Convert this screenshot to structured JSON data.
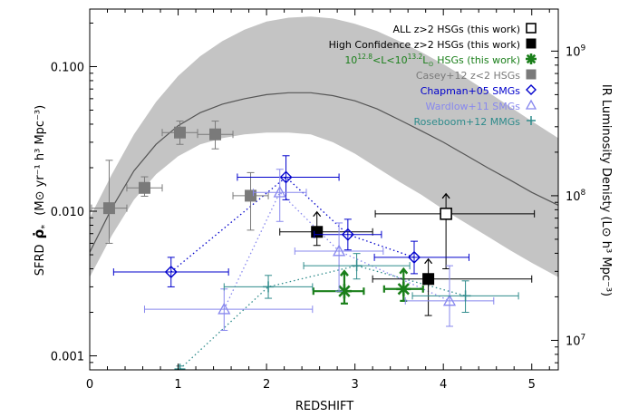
{
  "chart_data": {
    "type": "scatter",
    "title": "",
    "xlabel": "REDSHIFT",
    "ylabel_left": {
      "prefix": "SFRD",
      "symbol": "ρ̇",
      "symbol_sub": "*",
      "units": "(M⊙ yr⁻¹ h³ Mpc⁻³)"
    },
    "ylabel_right": "IR Luminosity Denisty (L⊙ h³ Mpc⁻³)",
    "xlim": [
      0,
      5.3
    ],
    "ylim": [
      0.0008,
      0.25
    ],
    "y_scale": "log",
    "right_axis_scale": "log",
    "x_ticks": [
      "0",
      "1",
      "2",
      "3",
      "4",
      "5"
    ],
    "y_ticks": [
      {
        "value": 0.001,
        "label": "0.001"
      },
      {
        "value": 0.01,
        "label": "0.010"
      },
      {
        "value": 0.1,
        "label": "0.100"
      }
    ],
    "right_ticks": [
      {
        "value": 0.00128,
        "label": "10",
        "exp": "7"
      },
      {
        "value": 0.0128,
        "label": "10",
        "exp": "8"
      },
      {
        "value": 0.128,
        "label": "10",
        "exp": "9"
      }
    ],
    "grid": false,
    "legend_position": "top-right",
    "band": {
      "z": [
        0,
        0.25,
        0.5,
        0.75,
        1.0,
        1.25,
        1.5,
        1.75,
        2.0,
        2.25,
        2.5,
        2.75,
        3.0,
        3.25,
        3.5,
        3.75,
        4.0,
        4.25,
        4.5,
        4.75,
        5.0,
        5.3
      ],
      "upper": [
        0.009,
        0.018,
        0.034,
        0.057,
        0.086,
        0.118,
        0.15,
        0.18,
        0.205,
        0.218,
        0.222,
        0.215,
        0.198,
        0.176,
        0.15,
        0.126,
        0.104,
        0.084,
        0.067,
        0.053,
        0.042,
        0.032
      ],
      "lower": [
        0.0035,
        0.0068,
        0.012,
        0.018,
        0.024,
        0.029,
        0.032,
        0.034,
        0.035,
        0.035,
        0.034,
        0.03,
        0.025,
        0.02,
        0.016,
        0.013,
        0.0103,
        0.0083,
        0.0067,
        0.0054,
        0.0044,
        0.0035
      ]
    },
    "model_line": {
      "z": [
        0,
        0.25,
        0.5,
        0.75,
        1.0,
        1.25,
        1.5,
        1.75,
        2.0,
        2.25,
        2.5,
        2.75,
        3.0,
        3.25,
        3.5,
        3.75,
        4.0,
        4.25,
        4.5,
        4.75,
        5.0,
        5.3
      ],
      "y": [
        0.0052,
        0.0105,
        0.019,
        0.029,
        0.039,
        0.048,
        0.055,
        0.06,
        0.064,
        0.066,
        0.066,
        0.063,
        0.058,
        0.051,
        0.043,
        0.036,
        0.03,
        0.0245,
        0.02,
        0.0165,
        0.0135,
        0.011
      ]
    },
    "series": [
      {
        "name": "ALL z>2 HSGs (this work)",
        "color": "#000000",
        "marker": "square-open",
        "connect": "none",
        "points": [
          {
            "x": 4.03,
            "y": 0.0096,
            "xerr": [
              0.8,
              1.0
            ],
            "yerr": [
              0.0056,
              0.0
            ],
            "lower_limit": true
          }
        ]
      },
      {
        "name": "High Confidence z>2 HSGs (this work)",
        "color": "#000000",
        "marker": "square-filled",
        "connect": "none",
        "points": [
          {
            "x": 2.57,
            "y": 0.0072,
            "xerr": [
              0.42,
              0.63
            ],
            "yerr": [
              0.0014,
              0.0
            ],
            "lower_limit": true
          },
          {
            "x": 3.83,
            "y": 0.0034,
            "xerr": [
              0.63,
              1.17
            ],
            "yerr": [
              0.0015,
              0.0
            ],
            "lower_limit": true
          }
        ]
      },
      {
        "name": "10^{12.8}<L<10^{13.2} L⊙ HSGs (this work)",
        "label_parts": {
          "base1": "10",
          "exp1": "12.8",
          "mid": "<L<10",
          "exp2": "13.2",
          "tail": "L",
          "sun_sub": "⊙",
          "end": " HSGs (this work)"
        },
        "color": "#1a7f1a",
        "marker": "asterisk",
        "connect": "none",
        "points": [
          {
            "x": 2.88,
            "y": 0.0028,
            "xerr": [
              0.35,
              0.22
            ],
            "yerr": [
              0.0005,
              0.0
            ],
            "lower_limit": true
          },
          {
            "x": 3.55,
            "y": 0.0029,
            "xerr": [
              0.22,
              0.22
            ],
            "yerr": [
              0.0005,
              0.0
            ],
            "lower_limit": true
          }
        ]
      },
      {
        "name": "Casey+12 z<2 HSGs",
        "color": "#7a7a7a",
        "marker": "square-filled",
        "connect": "none",
        "points": [
          {
            "x": 0.22,
            "y": 0.0105,
            "xerr": [
              0.2,
              0.2
            ],
            "yerr": [
              0.0045,
              0.012
            ]
          },
          {
            "x": 0.62,
            "y": 0.0145,
            "xerr": [
              0.2,
              0.2
            ],
            "yerr": [
              0.0018,
              0.0028
            ]
          },
          {
            "x": 1.02,
            "y": 0.035,
            "xerr": [
              0.2,
              0.2
            ],
            "yerr": [
              0.006,
              0.007
            ]
          },
          {
            "x": 1.42,
            "y": 0.034,
            "xerr": [
              0.2,
              0.2
            ],
            "yerr": [
              0.007,
              0.008
            ]
          },
          {
            "x": 1.82,
            "y": 0.0128,
            "xerr": [
              0.2,
              0.2
            ],
            "yerr": [
              0.0054,
              0.0057
            ]
          }
        ]
      },
      {
        "name": "Chapman+05 SMGs",
        "color": "#0000cc",
        "marker": "diamond-open",
        "connect": "dotted",
        "points": [
          {
            "x": 0.92,
            "y": 0.0038,
            "xerr": [
              0.65,
              0.65
            ],
            "yerr": [
              0.0008,
              0.001
            ]
          },
          {
            "x": 2.22,
            "y": 0.0172,
            "xerr": [
              0.55,
              0.6
            ],
            "yerr": [
              0.0052,
              0.007
            ]
          },
          {
            "x": 2.92,
            "y": 0.0069,
            "xerr": [
              0.38,
              0.38
            ],
            "yerr": [
              0.0015,
              0.0019
            ]
          },
          {
            "x": 3.67,
            "y": 0.0048,
            "xerr": [
              0.45,
              0.62
            ],
            "yerr": [
              0.0011,
              0.0014
            ]
          }
        ]
      },
      {
        "name": "Wardlow+11 SMGs",
        "color": "#8888ee",
        "marker": "triangle-open",
        "connect": "dotted",
        "points": [
          {
            "x": 1.52,
            "y": 0.0021,
            "xerr": [
              0.9,
              1.0
            ],
            "yerr": [
              0.0006,
              0.0008
            ]
          },
          {
            "x": 2.15,
            "y": 0.0135,
            "xerr": [
              0.3,
              0.3
            ],
            "yerr": [
              0.005,
              0.006
            ]
          },
          {
            "x": 2.82,
            "y": 0.0053,
            "xerr": [
              0.5,
              0.5
            ],
            "yerr": [
              0.0025,
              0.003
            ]
          },
          {
            "x": 4.07,
            "y": 0.0024,
            "xerr": [
              0.5,
              0.5
            ],
            "yerr": [
              0.0008,
              0.0018
            ]
          }
        ]
      },
      {
        "name": "Roseboom+12 MMGs",
        "color": "#2e8b8b",
        "marker": "plus",
        "connect": "dotted",
        "points": [
          {
            "x": 1.02,
            "y": 0.00081,
            "xerr": [
              0.0,
              0.0
            ],
            "yerr": [
              4e-05,
              4e-05
            ]
          },
          {
            "x": 2.02,
            "y": 0.003,
            "xerr": [
              0.5,
              0.5
            ],
            "yerr": [
              0.0005,
              0.0006
            ]
          },
          {
            "x": 3.02,
            "y": 0.0042,
            "xerr": [
              0.6,
              0.6
            ],
            "yerr": [
              0.0008,
              0.0009
            ]
          },
          {
            "x": 4.25,
            "y": 0.0026,
            "xerr": [
              0.6,
              0.6
            ],
            "yerr": [
              0.0006,
              0.0007
            ]
          }
        ]
      }
    ]
  }
}
